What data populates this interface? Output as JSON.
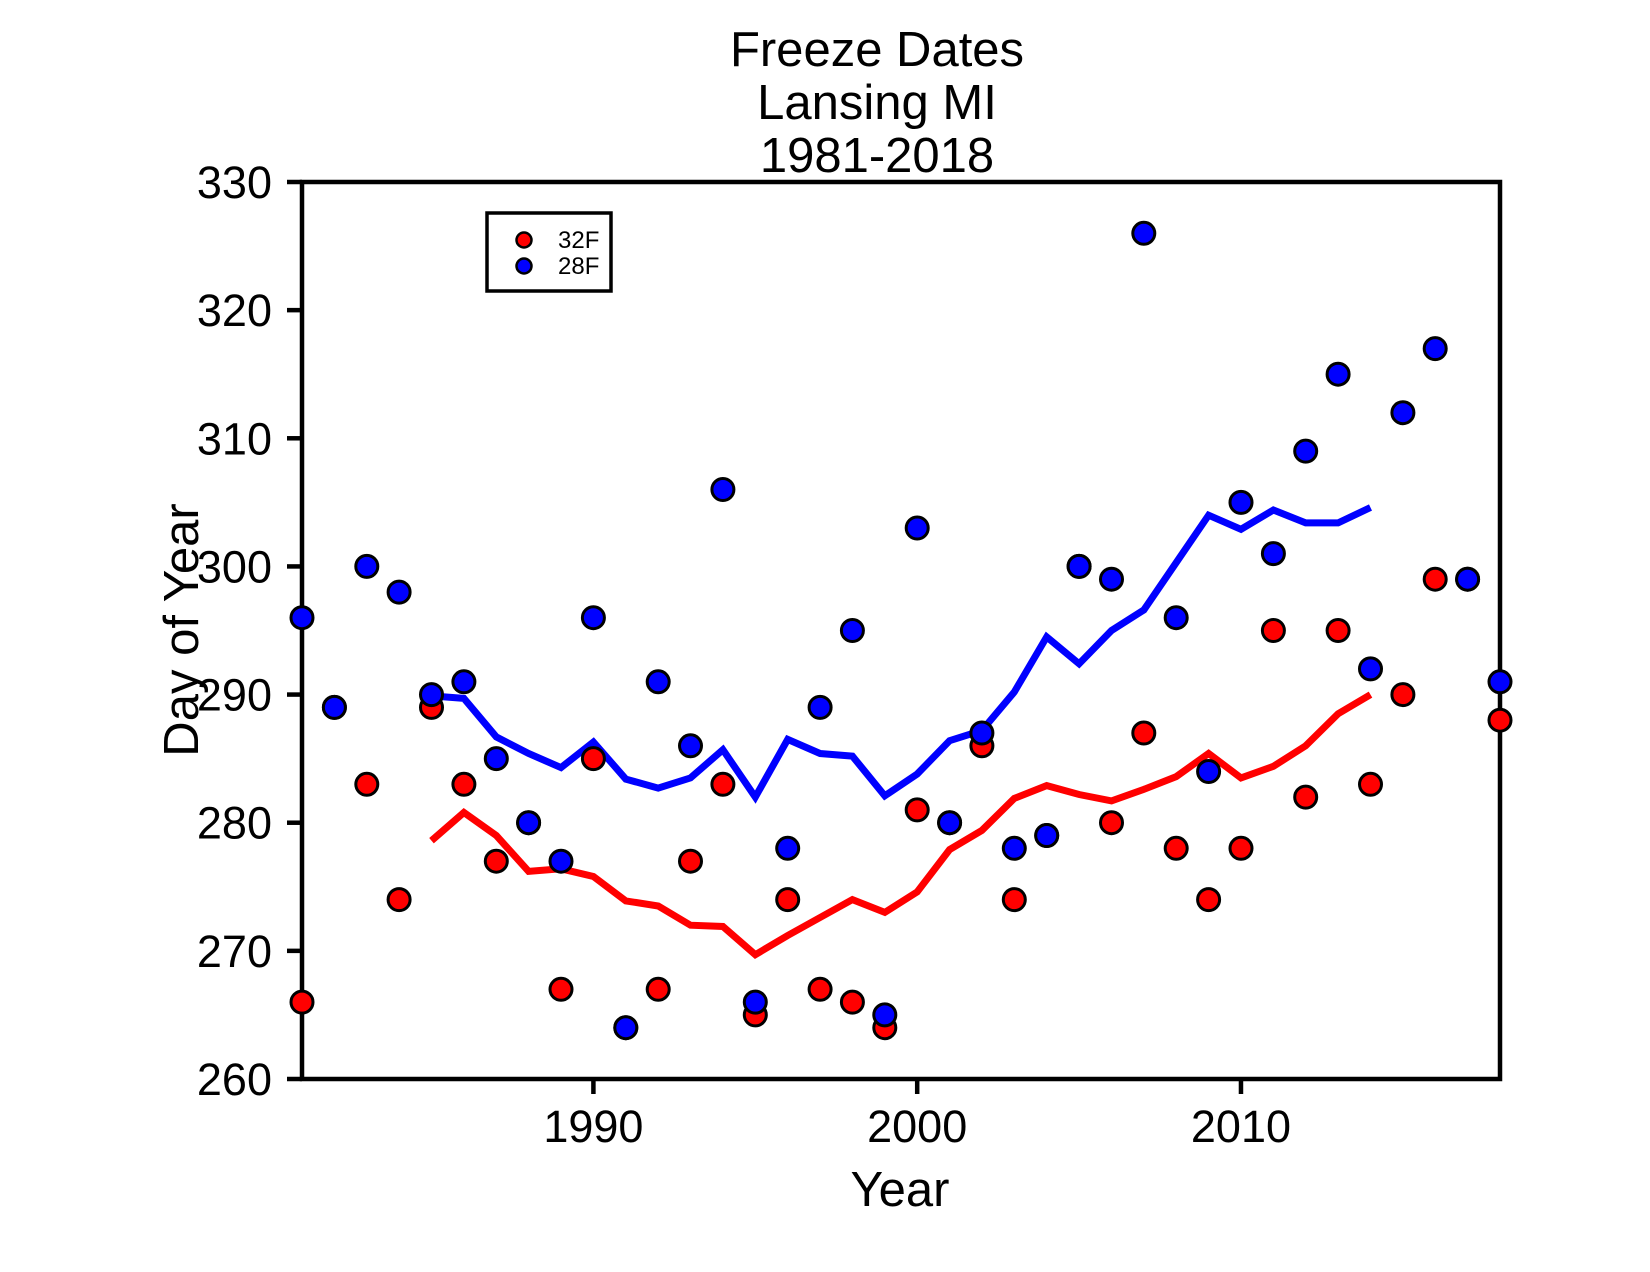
{
  "chart_data": {
    "type": "scatter",
    "title_lines": [
      "Freeze Dates",
      "Lansing MI",
      "1981-2018"
    ],
    "xlabel": "Year",
    "ylabel": "Day of Year",
    "xlim": [
      1981,
      2018
    ],
    "ylim": [
      260,
      330
    ],
    "x_ticks": [
      1990,
      2000,
      2010
    ],
    "y_ticks": [
      260,
      270,
      280,
      290,
      300,
      310,
      320,
      330
    ],
    "grid": false,
    "background_color": "#ffffff",
    "frame_color": "#000000",
    "legend": {
      "position": "top-left-inside",
      "entries": [
        {
          "label": "32F",
          "color": "#ff0000"
        },
        {
          "label": "28F",
          "color": "#0000ff"
        }
      ]
    },
    "years": [
      1981,
      1982,
      1983,
      1984,
      1985,
      1986,
      1987,
      1988,
      1989,
      1990,
      1991,
      1992,
      1993,
      1994,
      1995,
      1996,
      1997,
      1998,
      1999,
      2000,
      2001,
      2002,
      2003,
      2004,
      2005,
      2006,
      2007,
      2008,
      2009,
      2010,
      2011,
      2012,
      2013,
      2014,
      2015,
      2016,
      2017,
      2018
    ],
    "series": [
      {
        "name": "32F",
        "kind": "scatter",
        "color": "#ff0000",
        "values": [
          266,
          289,
          283,
          274,
          289,
          283,
          277,
          280,
          267,
          285,
          264,
          267,
          277,
          283,
          265,
          274,
          267,
          266,
          264,
          281,
          280,
          286,
          274,
          279,
          300,
          280,
          287,
          278,
          274,
          278,
          295,
          282,
          295,
          283,
          290,
          299,
          299,
          288
        ]
      },
      {
        "name": "28F",
        "kind": "scatter",
        "color": "#0000ff",
        "values": [
          296,
          289,
          300,
          298,
          290,
          291,
          285,
          280,
          277,
          296,
          264,
          291,
          286,
          306,
          266,
          278,
          289,
          295,
          265,
          303,
          280,
          287,
          278,
          279,
          300,
          299,
          326,
          296,
          284,
          305,
          301,
          309,
          315,
          292,
          312,
          317,
          299,
          291
        ]
      },
      {
        "name": "32F trend",
        "kind": "line",
        "color": "#ff0000",
        "x": [
          1985,
          1986,
          1987,
          1988,
          1989,
          1990,
          1991,
          1992,
          1993,
          1994,
          1995,
          1996,
          1997,
          1998,
          1999,
          2000,
          2001,
          2002,
          2003,
          2004,
          2005,
          2006,
          2007,
          2008,
          2009,
          2010,
          2011,
          2012,
          2013,
          2014
        ],
        "values": [
          278.6,
          280.8,
          279.0,
          276.2,
          276.4,
          275.8,
          273.9,
          273.5,
          272.0,
          271.9,
          269.7,
          271.2,
          272.6,
          274.0,
          273.0,
          274.6,
          277.9,
          279.4,
          281.9,
          282.9,
          282.2,
          281.7,
          282.6,
          283.6,
          285.4,
          283.5,
          284.4,
          286.0,
          288.5,
          290.0
        ]
      },
      {
        "name": "28F trend",
        "kind": "line",
        "color": "#0000ff",
        "x": [
          1985,
          1986,
          1987,
          1988,
          1989,
          1990,
          1991,
          1992,
          1993,
          1994,
          1995,
          1996,
          1997,
          1998,
          1999,
          2000,
          2001,
          2002,
          2003,
          2004,
          2005,
          2006,
          2007,
          2008,
          2009,
          2010,
          2011,
          2012,
          2013,
          2014
        ],
        "values": [
          289.9,
          289.7,
          286.7,
          285.4,
          284.3,
          286.3,
          283.4,
          282.7,
          283.5,
          285.7,
          282.0,
          286.5,
          285.4,
          285.2,
          282.1,
          283.8,
          286.4,
          287.2,
          290.2,
          294.5,
          292.4,
          295.0,
          296.6,
          300.3,
          304.0,
          302.9,
          304.4,
          303.4,
          303.4,
          304.6
        ]
      }
    ]
  }
}
